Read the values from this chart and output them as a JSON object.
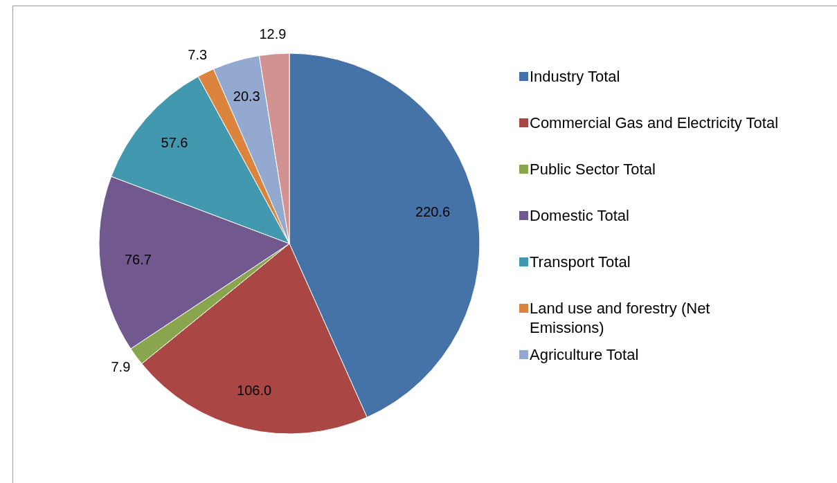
{
  "chart_data": {
    "type": "pie",
    "categories": [
      "Industry Total",
      "Commercial Gas and Electricity Total",
      "Public Sector Total",
      "Domestic Total",
      "Transport Total",
      "Land use and forestry (Net Emissions)",
      "Agriculture Total",
      null
    ],
    "values": [
      220.6,
      106.0,
      7.9,
      76.7,
      57.6,
      7.3,
      20.3,
      12.9
    ],
    "value_labels": [
      "220.6",
      "106.0",
      "7.9",
      "76.7",
      "57.6",
      "7.3",
      "20.3",
      "12.9"
    ],
    "colors": [
      "#4572a7",
      "#aa4643",
      "#89a54e",
      "#71588f",
      "#4198af",
      "#db843d",
      "#93a9cf",
      "#d19392"
    ],
    "legend": "right"
  }
}
